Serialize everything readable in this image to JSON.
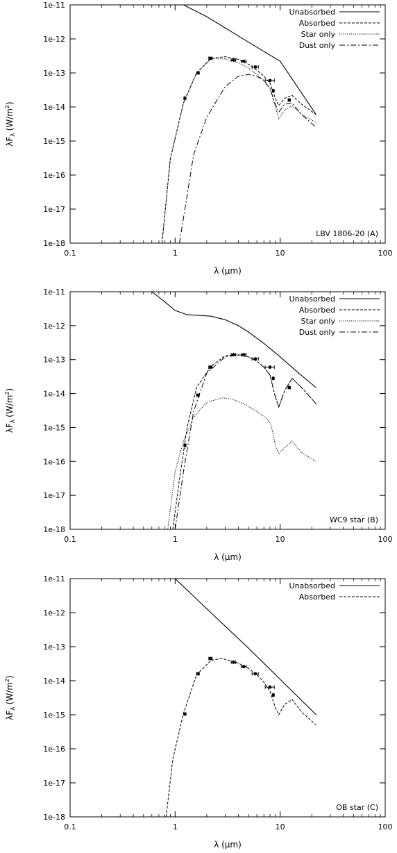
{
  "chart_data": [
    {
      "type": "line",
      "annotation": "LBV 1806-20 (A)",
      "xlabel": "λ (μm)",
      "ylabel": "λF",
      "ylabel_sub": "λ",
      "ylabel_unit": "(W/m",
      "ylabel_sup": "2",
      "ylabel_close": ")",
      "xscale": "log",
      "yscale": "log",
      "xlim": [
        0.1,
        100
      ],
      "ylim": [
        1e-18,
        1e-11
      ],
      "xticks": [
        0.1,
        1,
        10,
        100
      ],
      "xtick_labels": [
        "0.1",
        "1",
        "10",
        "100"
      ],
      "yticks": [
        1e-18,
        1e-17,
        1e-16,
        1e-15,
        1e-14,
        1e-13,
        1e-12,
        1e-11
      ],
      "ytick_labels": [
        "1e-18",
        "1e-17",
        "1e-16",
        "1e-15",
        "1e-14",
        "1e-13",
        "1e-12",
        "1e-11"
      ],
      "legend_position": "top-right",
      "series": [
        {
          "name": "Unabsorbed",
          "style": "solid",
          "x": [
            1.2,
            2,
            5,
            10,
            22
          ],
          "y": [
            1e-11,
            4.5e-12,
            8e-13,
            2.2e-13,
            6e-15
          ]
        },
        {
          "name": "Absorbed",
          "style": "dashed",
          "x": [
            0.75,
            0.9,
            1.2,
            1.6,
            2.2,
            3,
            4,
            5,
            6,
            7,
            8,
            9,
            9.7,
            11,
            13,
            16,
            22
          ],
          "y": [
            1e-18,
            3e-16,
            1.3e-14,
            1e-13,
            2.7e-13,
            3e-13,
            2.5e-13,
            1.8e-13,
            1.2e-13,
            8e-14,
            5e-14,
            1.8e-14,
            1.1e-14,
            1.8e-14,
            2.2e-14,
            1.2e-14,
            6e-15
          ]
        },
        {
          "name": "Star only",
          "style": "dotted",
          "x": [
            0.75,
            0.9,
            1.2,
            1.6,
            2.2,
            3,
            4,
            5,
            6,
            7,
            8,
            9,
            9.7,
            11,
            13,
            16,
            22
          ],
          "y": [
            1e-18,
            3e-16,
            1.3e-14,
            1e-13,
            2.6e-13,
            2.6e-13,
            2e-13,
            1.4e-13,
            9e-14,
            6e-14,
            3.5e-14,
            1e-14,
            4.5e-15,
            8e-15,
            1.1e-14,
            6e-15,
            3.5e-15
          ]
        },
        {
          "name": "Dust only",
          "style": "dashdot",
          "x": [
            1.1,
            1.5,
            2,
            3,
            4,
            5,
            6,
            7,
            8,
            9,
            9.7,
            11,
            13,
            16,
            22
          ],
          "y": [
            1e-18,
            4e-16,
            5e-15,
            4e-14,
            8e-14,
            9e-14,
            8e-14,
            6e-14,
            3.5e-14,
            1.2e-14,
            7e-15,
            1.2e-14,
            1.3e-14,
            6e-15,
            2.5e-15
          ]
        }
      ],
      "points": [
        {
          "x": 1.24,
          "y": 1.8e-14,
          "xerr": 0.03,
          "yerr": 0.15
        },
        {
          "x": 1.65,
          "y": 1e-13,
          "xerr": 0.05,
          "yerr": 0.1
        },
        {
          "x": 2.17,
          "y": 2.7e-13,
          "xerr": 0.08,
          "yerr": 0.1
        },
        {
          "x": 3.6,
          "y": 2.4e-13,
          "xerr": 0.18,
          "yerr": 0.05
        },
        {
          "x": 4.5,
          "y": 2.2e-13,
          "xerr": 0.25,
          "yerr": 0.05
        },
        {
          "x": 5.8,
          "y": 1.5e-13,
          "xerr": 0.4,
          "yerr": 0.05
        },
        {
          "x": 8.0,
          "y": 6e-14,
          "xerr": 0.8,
          "yerr": 0.05
        },
        {
          "x": 8.6,
          "y": 3e-14,
          "xerr": 0.15,
          "yerr": 0.1
        },
        {
          "x": 12.2,
          "y": 1.6e-14,
          "xerr": 0.3,
          "yerr": 0.1
        }
      ]
    },
    {
      "type": "line",
      "annotation": "WC9 star (B)",
      "xlabel": "λ (μm)",
      "ylabel": "λF",
      "ylabel_sub": "λ",
      "ylabel_unit": "(W/m",
      "ylabel_sup": "2",
      "ylabel_close": ")",
      "xscale": "log",
      "yscale": "log",
      "xlim": [
        0.1,
        100
      ],
      "ylim": [
        1e-18,
        1e-11
      ],
      "xticks": [
        0.1,
        1,
        10,
        100
      ],
      "xtick_labels": [
        "0.1",
        "1",
        "10",
        "100"
      ],
      "yticks": [
        1e-18,
        1e-17,
        1e-16,
        1e-15,
        1e-14,
        1e-13,
        1e-12,
        1e-11
      ],
      "ytick_labels": [
        "1e-18",
        "1e-17",
        "1e-16",
        "1e-15",
        "1e-14",
        "1e-13",
        "1e-12",
        "1e-11"
      ],
      "legend_position": "top-right",
      "series": [
        {
          "name": "Unabsorbed",
          "style": "solid",
          "x": [
            0.6,
            0.8,
            1.0,
            1.3,
            1.7,
            2.2,
            3,
            4,
            5,
            7,
            10,
            15,
            22
          ],
          "y": [
            1e-11,
            5e-12,
            2.8e-12,
            2.1e-12,
            2e-12,
            1.9e-12,
            1.5e-12,
            1e-12,
            6.5e-13,
            3e-13,
            1.2e-13,
            4e-14,
            1.5e-14
          ]
        },
        {
          "name": "Absorbed",
          "style": "dashed",
          "x": [
            0.95,
            1.1,
            1.3,
            1.6,
            2.2,
            3,
            4,
            5,
            6,
            7,
            8,
            9,
            9.7,
            11,
            13,
            16,
            22
          ],
          "y": [
            1e-18,
            3e-17,
            1e-15,
            1.5e-14,
            6.5e-14,
            1.3e-13,
            1.4e-13,
            1.2e-13,
            9e-14,
            6e-14,
            3.5e-14,
            8e-15,
            4e-15,
            1.2e-14,
            2.8e-14,
            1.5e-14,
            5e-15
          ]
        },
        {
          "name": "Star only",
          "style": "dotted",
          "x": [
            0.85,
            1.0,
            1.2,
            1.5,
            2,
            2.8,
            3.5,
            4.5,
            6,
            7.5,
            8.2,
            9,
            9.7,
            11,
            13,
            16,
            22
          ],
          "y": [
            1e-18,
            5e-17,
            4e-16,
            2e-15,
            5.5e-15,
            7.5e-15,
            6.8e-15,
            5e-15,
            3e-15,
            1.8e-15,
            1.2e-15,
            3e-16,
            1.7e-16,
            2.5e-16,
            4e-16,
            1.8e-16,
            1e-16
          ]
        },
        {
          "name": "Dust only",
          "style": "dashdot",
          "x": [
            1.0,
            1.2,
            1.5,
            2,
            3,
            4,
            5,
            6,
            7,
            8,
            9,
            9.7,
            11,
            13,
            16,
            22
          ],
          "y": [
            1e-18,
            5e-17,
            3e-15,
            4e-14,
            1.2e-13,
            1.35e-13,
            1.2e-13,
            9e-14,
            6e-14,
            3.5e-14,
            8e-15,
            4e-15,
            1.2e-14,
            2.8e-14,
            1.5e-14,
            5e-15
          ]
        }
      ],
      "points": [
        {
          "x": 1.24,
          "y": 3e-16,
          "xerr": 0.03,
          "yerr": 0.2
        },
        {
          "x": 1.65,
          "y": 9e-15,
          "xerr": 0.05,
          "yerr": 0.1
        },
        {
          "x": 2.17,
          "y": 6e-14,
          "xerr": 0.08,
          "yerr": 0.08
        },
        {
          "x": 3.6,
          "y": 1.4e-13,
          "xerr": 0.18,
          "yerr": 0.05
        },
        {
          "x": 4.5,
          "y": 1.4e-13,
          "xerr": 0.25,
          "yerr": 0.05
        },
        {
          "x": 5.8,
          "y": 1.05e-13,
          "xerr": 0.4,
          "yerr": 0.05
        },
        {
          "x": 8.0,
          "y": 6e-14,
          "xerr": 0.8,
          "yerr": 0.05
        },
        {
          "x": 8.6,
          "y": 2.8e-14,
          "xerr": 0.15,
          "yerr": 0.1
        },
        {
          "x": 12.2,
          "y": 1.5e-14,
          "xerr": 0.3,
          "yerr": 0.1
        }
      ]
    },
    {
      "type": "line",
      "annotation": "OB star (C)",
      "xlabel": "λ (μm)",
      "ylabel": "λF",
      "ylabel_sub": "λ",
      "ylabel_unit": "(W/m",
      "ylabel_sup": "2",
      "ylabel_close": ")",
      "xscale": "log",
      "yscale": "log",
      "xlim": [
        0.1,
        100
      ],
      "ylim": [
        1e-18,
        1e-11
      ],
      "xticks": [
        0.1,
        1,
        10,
        100
      ],
      "xtick_labels": [
        "0.1",
        "1",
        "10",
        "100"
      ],
      "yticks": [
        1e-18,
        1e-17,
        1e-16,
        1e-15,
        1e-14,
        1e-13,
        1e-12,
        1e-11
      ],
      "ytick_labels": [
        "1e-18",
        "1e-17",
        "1e-16",
        "1e-15",
        "1e-14",
        "1e-13",
        "1e-12",
        "1e-11"
      ],
      "legend_position": "top-right",
      "series": [
        {
          "name": "Unabsorbed",
          "style": "solid",
          "x": [
            1.0,
            2,
            5,
            10,
            22
          ],
          "y": [
            1e-11,
            1.3e-12,
            9e-14,
            1.1e-14,
            1e-15
          ]
        },
        {
          "name": "Absorbed",
          "style": "dashed",
          "x": [
            0.82,
            0.95,
            1.2,
            1.6,
            2.2,
            2.8,
            4,
            5,
            6,
            7,
            8,
            9,
            9.7,
            11,
            13,
            16,
            22
          ],
          "y": [
            1e-18,
            5e-17,
            1.1e-15,
            1.5e-14,
            4e-14,
            4.5e-14,
            3.3e-14,
            2.3e-14,
            1.5e-14,
            9e-15,
            5e-15,
            1.6e-15,
            1e-15,
            2e-15,
            2.8e-15,
            1.2e-15,
            5e-16
          ]
        }
      ],
      "points": [
        {
          "x": 1.24,
          "y": 1.05e-15,
          "xerr": 0.03,
          "yerr": 0.1
        },
        {
          "x": 1.65,
          "y": 1.6e-14,
          "xerr": 0.05,
          "yerr": 0.08
        },
        {
          "x": 2.17,
          "y": 4.5e-14,
          "xerr": 0.08,
          "yerr": 0.06
        },
        {
          "x": 3.6,
          "y": 3.5e-14,
          "xerr": 0.18,
          "yerr": 0.05
        },
        {
          "x": 4.5,
          "y": 2.6e-14,
          "xerr": 0.25,
          "yerr": 0.05
        },
        {
          "x": 5.8,
          "y": 1.6e-14,
          "xerr": 0.4,
          "yerr": 0.05
        },
        {
          "x": 8.0,
          "y": 6.5e-15,
          "xerr": 0.8,
          "yerr": 0.05
        },
        {
          "x": 8.6,
          "y": 3.8e-15,
          "xerr": 0.15,
          "yerr": 0.1
        }
      ]
    }
  ]
}
